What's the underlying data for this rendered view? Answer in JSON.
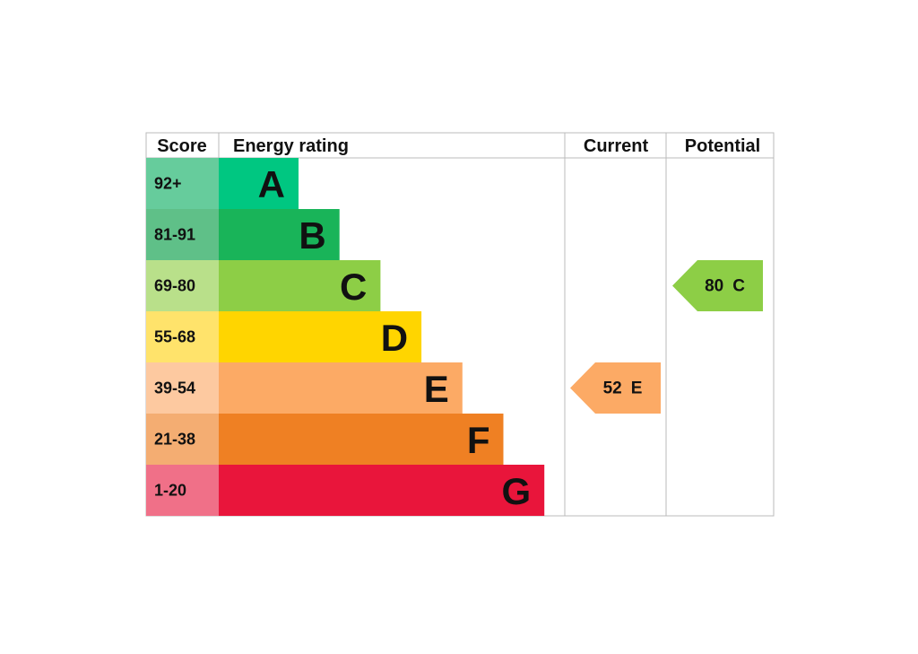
{
  "header": {
    "score": "Score",
    "energy_rating": "Energy rating",
    "current": "Current",
    "potential": "Potential"
  },
  "bands": [
    {
      "score": "92+",
      "letter": "A",
      "color": "#00c781",
      "score_color": "#66cc9c"
    },
    {
      "score": "81-91",
      "letter": "B",
      "color": "#19b459",
      "score_color": "#5fc088"
    },
    {
      "score": "69-80",
      "letter": "C",
      "color": "#8dce46",
      "score_color": "#b9e08a"
    },
    {
      "score": "55-68",
      "letter": "D",
      "color": "#ffd500",
      "score_color": "#ffe36b"
    },
    {
      "score": "39-54",
      "letter": "E",
      "color": "#fcaa65",
      "score_color": "#fdc9a0"
    },
    {
      "score": "21-38",
      "letter": "F",
      "color": "#ef8023",
      "score_color": "#f4ad72"
    },
    {
      "score": "1-20",
      "letter": "G",
      "color": "#e9153b",
      "score_color": "#f07088"
    }
  ],
  "current": {
    "score": 52,
    "rating": "E"
  },
  "potential": {
    "score": 80,
    "rating": "C"
  }
}
